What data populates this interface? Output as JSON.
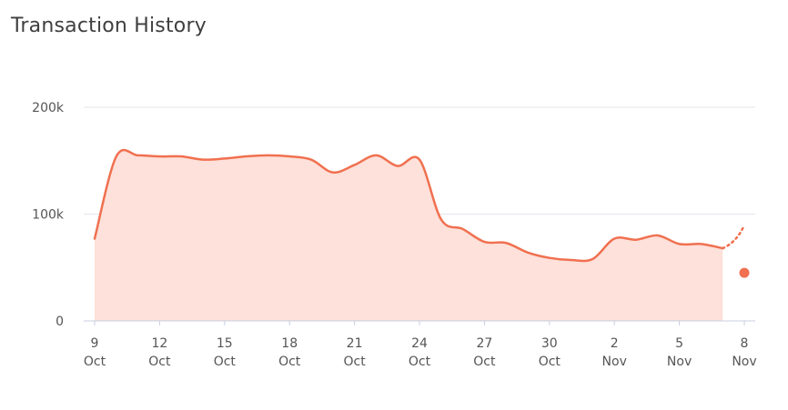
{
  "header": {
    "title": "Transaction History"
  },
  "chart_data": {
    "type": "area",
    "title": "Transaction History",
    "xlabel": "",
    "ylabel": "",
    "ylim": [
      0,
      200000
    ],
    "yticks": [
      {
        "value": 0,
        "label": "0"
      },
      {
        "value": 100000,
        "label": "100k"
      },
      {
        "value": 200000,
        "label": "200k"
      }
    ],
    "xticks": [
      {
        "date": "2023-10-09",
        "day": "9",
        "month": "Oct"
      },
      {
        "date": "2023-10-12",
        "day": "12",
        "month": "Oct"
      },
      {
        "date": "2023-10-15",
        "day": "15",
        "month": "Oct"
      },
      {
        "date": "2023-10-18",
        "day": "18",
        "month": "Oct"
      },
      {
        "date": "2023-10-21",
        "day": "21",
        "month": "Oct"
      },
      {
        "date": "2023-10-24",
        "day": "24",
        "month": "Oct"
      },
      {
        "date": "2023-10-27",
        "day": "27",
        "month": "Oct"
      },
      {
        "date": "2023-10-30",
        "day": "30",
        "month": "Oct"
      },
      {
        "date": "2023-11-02",
        "day": "2",
        "month": "Nov"
      },
      {
        "date": "2023-11-05",
        "day": "5",
        "month": "Nov"
      },
      {
        "date": "2023-11-08",
        "day": "8",
        "month": "Nov"
      }
    ],
    "grid": true,
    "legend": "none",
    "colors": {
      "line": "#f07050",
      "fill": "#fde1da",
      "grid": "#e4e6eb",
      "axis": "#c8cfe0"
    },
    "series": [
      {
        "points": [
          [
            "2023-10-09",
            77000
          ],
          [
            "2023-10-10",
            154000
          ],
          [
            "2023-10-11",
            155000
          ],
          [
            "2023-10-12",
            154000
          ],
          [
            "2023-10-13",
            154000
          ],
          [
            "2023-10-14",
            151000
          ],
          [
            "2023-10-15",
            152000
          ],
          [
            "2023-10-16",
            154000
          ],
          [
            "2023-10-17",
            155000
          ],
          [
            "2023-10-18",
            154000
          ],
          [
            "2023-10-19",
            151000
          ],
          [
            "2023-10-20",
            139000
          ],
          [
            "2023-10-21",
            146000
          ],
          [
            "2023-10-22",
            155000
          ],
          [
            "2023-10-23",
            145000
          ],
          [
            "2023-10-24",
            151000
          ],
          [
            "2023-10-25",
            95000
          ],
          [
            "2023-10-26",
            86000
          ],
          [
            "2023-10-27",
            74000
          ],
          [
            "2023-10-28",
            73000
          ],
          [
            "2023-10-29",
            64000
          ],
          [
            "2023-10-30",
            59000
          ],
          [
            "2023-10-31",
            57000
          ],
          [
            "2023-11-01",
            58000
          ],
          [
            "2023-11-02",
            77000
          ],
          [
            "2023-11-03",
            76000
          ],
          [
            "2023-11-04",
            80000
          ],
          [
            "2023-11-05",
            72000
          ],
          [
            "2023-11-06",
            72000
          ],
          [
            "2023-11-07",
            68000
          ]
        ],
        "projection": [
          [
            "2023-11-07",
            68000
          ],
          [
            "2023-11-08",
            90000
          ]
        ],
        "marker": [
          "2023-11-08",
          45000
        ]
      }
    ]
  }
}
